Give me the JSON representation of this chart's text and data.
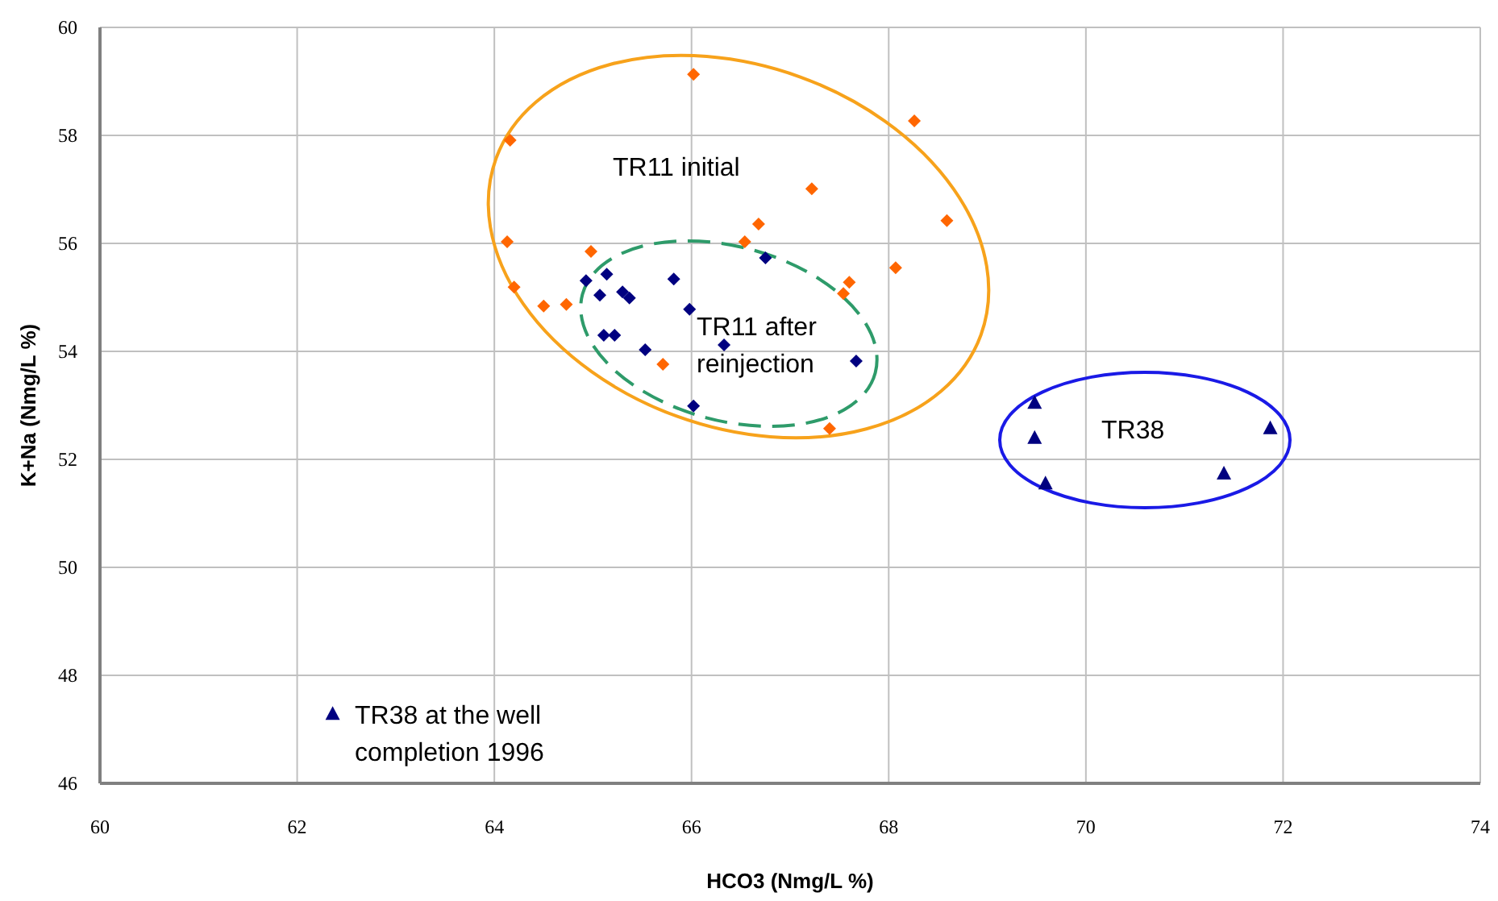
{
  "chart_data": {
    "type": "scatter",
    "xlabel": "HCO3 (Nmg/L %)",
    "ylabel": "K+Na (Nmg/L %)",
    "xlim": [
      60,
      74
    ],
    "xticks": [
      60,
      62,
      64,
      66,
      68,
      70,
      72,
      74
    ],
    "ylim": [
      46,
      60
    ],
    "yticks": [
      46,
      48,
      50,
      52,
      54,
      56,
      58,
      60
    ],
    "grid": true,
    "series": [
      {
        "color": "#ff6600",
        "marker": "diamond",
        "x": [
          66.02,
          64.16,
          68.26,
          64.13,
          67.22,
          66.68,
          68.59,
          66.54,
          64.98,
          67.6,
          68.07,
          67.54,
          64.2,
          64.5,
          64.73,
          65.71,
          67.4
        ],
        "values": [
          59.13,
          57.91,
          58.27,
          56.03,
          57.01,
          56.36,
          56.42,
          56.03,
          55.85,
          55.28,
          55.55,
          55.07,
          55.19,
          54.84,
          54.87,
          53.76,
          52.57
        ]
      },
      {
        "color": "#000080",
        "marker": "diamond",
        "x": [
          64.93,
          65.14,
          65.07,
          65.3,
          65.35,
          65.37,
          65.82,
          65.98,
          66.75,
          65.11,
          65.22,
          65.53,
          66.33,
          67.67,
          66.02
        ],
        "values": [
          55.31,
          55.43,
          55.04,
          55.1,
          null,
          54.99,
          55.34,
          54.78,
          55.73,
          54.3,
          54.3,
          54.03,
          54.12,
          53.82,
          52.99
        ]
      },
      {
        "color": "#000080",
        "marker": "triangle",
        "x": [
          69.48,
          69.48,
          69.59,
          71.87,
          71.4,
          62.36
        ],
        "values": [
          53.04,
          52.39,
          51.55,
          52.57,
          51.73,
          47.28
        ]
      }
    ],
    "annotations": [
      "TR11 initial",
      "TR11 after\nreinjection",
      "TR38",
      "TR38 at the well\ncompletion 1996"
    ]
  }
}
